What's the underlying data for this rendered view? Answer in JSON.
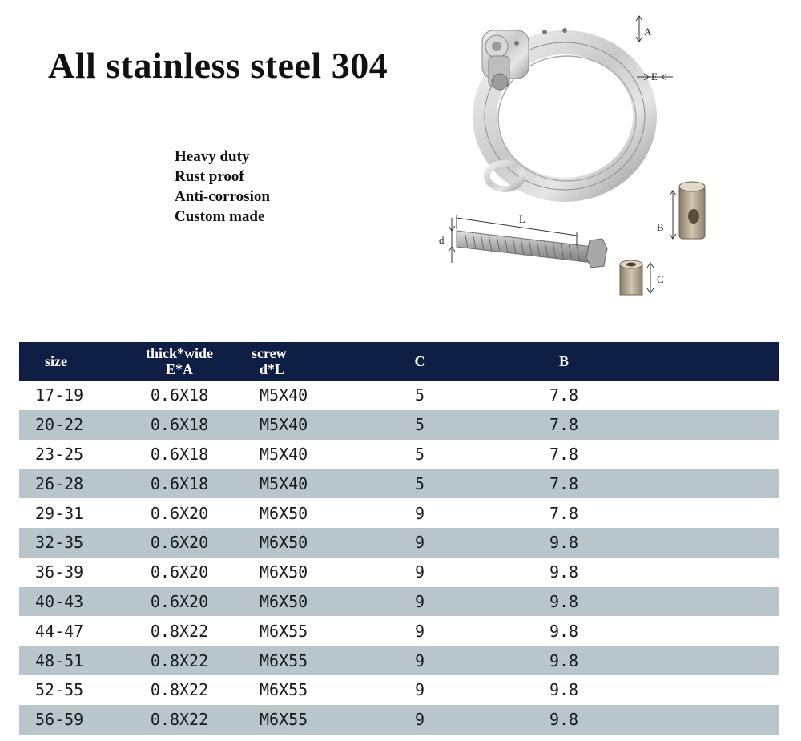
{
  "title": "All stainless steel 304",
  "features": [
    "Heavy duty",
    "Rust proof",
    "Anti-corrosion",
    "Custom made"
  ],
  "diagram_labels": {
    "a": "A",
    "e": "E",
    "l": "L",
    "d": "d",
    "b": "B",
    "c": "C"
  },
  "table": {
    "headers": {
      "size": "size",
      "thick_line1": "thick*wide",
      "thick_line2": "E*A",
      "screw_line1": "screw",
      "screw_line2": "d*L",
      "c": "C",
      "b": "B"
    },
    "rows": [
      [
        "17-19",
        "0.6X18",
        "M5X40",
        "5",
        "7.8"
      ],
      [
        "20-22",
        "0.6X18",
        "M5X40",
        "5",
        "7.8"
      ],
      [
        "23-25",
        "0.6X18",
        "M5X40",
        "5",
        "7.8"
      ],
      [
        "26-28",
        "0.6X18",
        "M5X40",
        "5",
        "7.8"
      ],
      [
        "29-31",
        "0.6X20",
        "M6X50",
        "9",
        "7.8"
      ],
      [
        "32-35",
        "0.6X20",
        "M6X50",
        "9",
        "9.8"
      ],
      [
        "36-39",
        "0.6X20",
        "M6X50",
        "9",
        "9.8"
      ],
      [
        "40-43",
        "0.6X20",
        "M6X50",
        "9",
        "9.8"
      ],
      [
        "44-47",
        "0.8X22",
        "M6X55",
        "9",
        "9.8"
      ],
      [
        "48-51",
        "0.8X22",
        "M6X55",
        "9",
        "9.8"
      ],
      [
        "52-55",
        "0.8X22",
        "M6X55",
        "9",
        "9.8"
      ],
      [
        "56-59",
        "0.8X22",
        "M6X55",
        "9",
        "9.8"
      ]
    ]
  },
  "colors": {
    "header_bg": "#0e1e45",
    "stripe": "#b8c6cb"
  }
}
